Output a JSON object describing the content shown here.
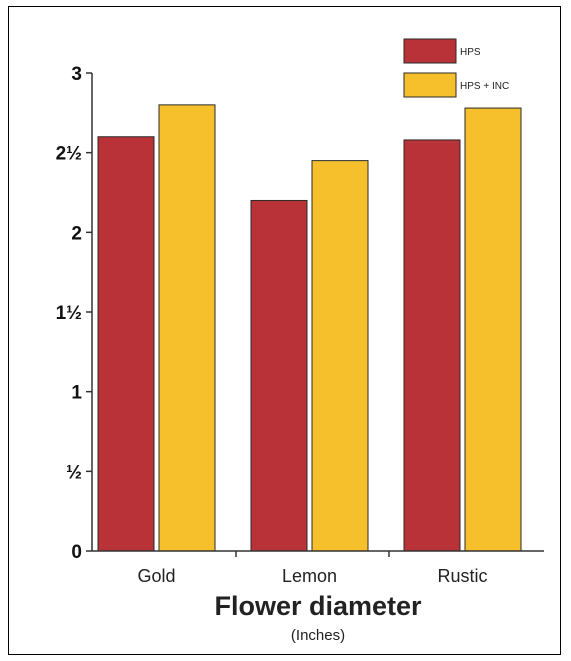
{
  "chart_data": {
    "type": "bar",
    "categories": [
      "Gold",
      "Lemon",
      "Rustic"
    ],
    "series": [
      {
        "name": "HPS",
        "values": [
          2.6,
          2.2,
          2.58
        ]
      },
      {
        "name": "HPS + INC",
        "values": [
          2.8,
          2.45,
          2.78
        ]
      }
    ],
    "colors": [
      "#b83238",
      "#f5c02c"
    ],
    "yticks": [
      "0",
      "½",
      "1",
      "1½",
      "2",
      "2½",
      "3"
    ],
    "ylim": [
      0,
      3
    ],
    "title": "",
    "xlabel": "Flower diameter",
    "xlabel_unit": "(Inches)",
    "ylabel": "",
    "legend": "top-right",
    "grid": false
  }
}
